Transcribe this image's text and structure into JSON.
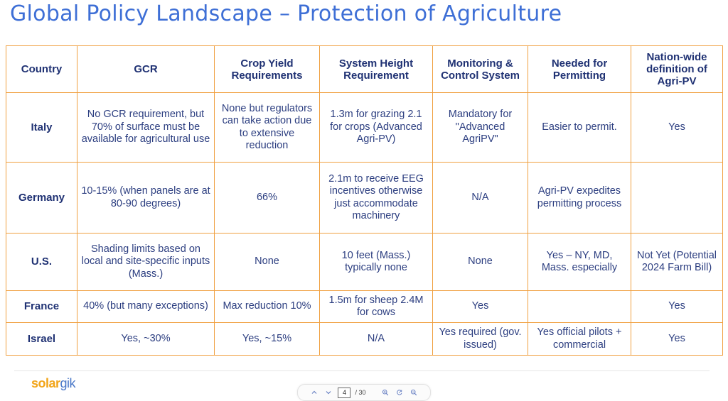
{
  "title": "Global Policy Landscape – Protection of Agriculture",
  "table": {
    "headers": [
      "Country",
      "GCR",
      "Crop Yield Requirements",
      "System Height Requirement",
      "Monitoring & Control System",
      "Needed for Permitting",
      "Nation-wide definition of Agri-PV"
    ],
    "rows": [
      [
        "Italy",
        "No GCR requirement, but 70% of surface must be available for agricultural use",
        "None but regulators can take action due to extensive reduction",
        "1.3m for grazing 2.1 for crops (Advanced Agri-PV)",
        "Mandatory for \"Advanced AgriPV\"",
        "Easier to  permit.",
        "Yes"
      ],
      [
        "Germany",
        "10-15% (when panels are at 80-90 degrees)",
        "66%",
        "2.1m to receive EEG incentives otherwise just accommodate machinery",
        "N/A",
        "Agri-PV expedites permitting process",
        ""
      ],
      [
        "U.S.",
        "Shading limits based on local and site-specific inputs (Mass.)",
        "None",
        "10 feet (Mass.) typically none",
        "None",
        "Yes – NY, MD, Mass. especially",
        "Not Yet (Potential 2024 Farm Bill)"
      ],
      [
        "France",
        "40% (but many exceptions)",
        "Max reduction 10%",
        "1.5m for sheep 2.4M for cows",
        "Yes",
        "",
        "Yes"
      ],
      [
        "Israel",
        "Yes, ~30%",
        "Yes, ~15%",
        "N/A",
        "Yes required (gov. issued)",
        "Yes official pilots + commercial",
        "Yes"
      ]
    ]
  },
  "logo": {
    "part1": "solar",
    "part2": "gik"
  },
  "toolbar": {
    "page_current": "4",
    "page_total": "/ 30",
    "icons": [
      "chevron-up-icon",
      "chevron-down-icon",
      "zoom-in-icon",
      "reset-zoom-icon",
      "zoom-out-icon"
    ]
  }
}
